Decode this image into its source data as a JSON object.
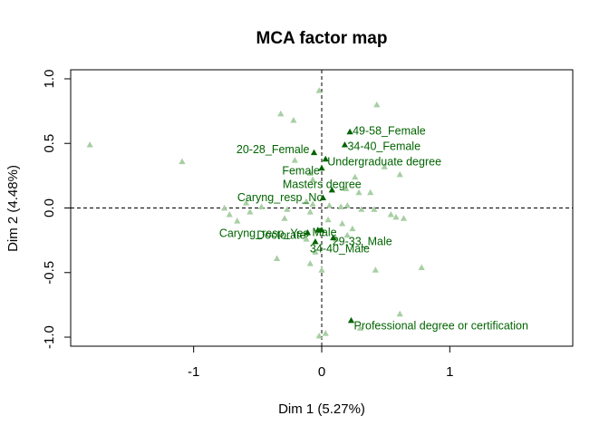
{
  "chart_data": {
    "type": "scatter",
    "title": "MCA factor map",
    "xlabel": "Dim 1 (5.27%)",
    "ylabel": "Dim 2 (4.48%)",
    "xlim": [
      -1.96,
      1.96
    ],
    "ylim": [
      -1.07,
      1.07
    ],
    "x_ticks": [
      -1,
      0,
      1
    ],
    "x_tick_labels": [
      "-1",
      "0",
      "1"
    ],
    "y_ticks": [
      -1.0,
      -0.5,
      0.0,
      0.5,
      1.0
    ],
    "y_tick_labels": [
      "-1.0",
      "-0.5",
      "0.0",
      "0.5",
      "1.0"
    ],
    "grid": false,
    "reference_lines": [
      0,
      0
    ],
    "colors": {
      "highlighted": "#006400",
      "background_points": "#a8cfa4"
    },
    "labeled_points": [
      {
        "label": "49-58_Female",
        "x": 0.22,
        "y": 0.59
      },
      {
        "label": "34-40_Female",
        "x": 0.18,
        "y": 0.49
      },
      {
        "label": "20-28_Female",
        "x": -0.06,
        "y": 0.43
      },
      {
        "label": "Undergraduate degree",
        "x": 0.03,
        "y": 0.38
      },
      {
        "label": "Female",
        "x": 0.0,
        "y": 0.31
      },
      {
        "label": "Masters degree",
        "x": 0.08,
        "y": 0.14
      },
      {
        "label": "Caryng_resp_No",
        "x": 0.01,
        "y": 0.08
      },
      {
        "label": "Caryng_resp_Yes",
        "x": -0.03,
        "y": -0.17
      },
      {
        "label": "Male",
        "x": 0.0,
        "y": -0.17
      },
      {
        "label": "Doctorate",
        "x": -0.11,
        "y": -0.19
      },
      {
        "label": "29-33_Male",
        "x": 0.09,
        "y": -0.23
      },
      {
        "label": "34-40_Male",
        "x": -0.05,
        "y": -0.26
      },
      {
        "label": "Professional degree or certification",
        "x": 0.23,
        "y": -0.87
      }
    ],
    "unlabeled_points": [
      {
        "x": -0.02,
        "y": 0.91
      },
      {
        "x": 0.43,
        "y": 0.8
      },
      {
        "x": -0.32,
        "y": 0.73
      },
      {
        "x": -0.22,
        "y": 0.68
      },
      {
        "x": -1.81,
        "y": 0.49
      },
      {
        "x": -1.09,
        "y": 0.36
      },
      {
        "x": -0.21,
        "y": 0.37
      },
      {
        "x": 0.49,
        "y": 0.32
      },
      {
        "x": 0.61,
        "y": 0.26
      },
      {
        "x": 0.26,
        "y": 0.24
      },
      {
        "x": -0.07,
        "y": 0.22
      },
      {
        "x": -0.09,
        "y": 0.27
      },
      {
        "x": 0.19,
        "y": 0.15
      },
      {
        "x": 0.29,
        "y": 0.12
      },
      {
        "x": 0.38,
        "y": 0.12
      },
      {
        "x": -0.07,
        "y": 0.03
      },
      {
        "x": -0.12,
        "y": 0.05
      },
      {
        "x": -0.47,
        "y": 0.01
      },
      {
        "x": -0.59,
        "y": 0.04
      },
      {
        "x": -0.76,
        "y": 0.0
      },
      {
        "x": -0.56,
        "y": -0.03
      },
      {
        "x": -0.27,
        "y": -0.01
      },
      {
        "x": 0.06,
        "y": 0.02
      },
      {
        "x": 0.15,
        "y": 0.01
      },
      {
        "x": 0.2,
        "y": 0.02
      },
      {
        "x": 0.31,
        "y": -0.01
      },
      {
        "x": 0.41,
        "y": -0.01
      },
      {
        "x": 0.54,
        "y": -0.05
      },
      {
        "x": 0.58,
        "y": -0.07
      },
      {
        "x": 0.64,
        "y": -0.08
      },
      {
        "x": -0.72,
        "y": -0.05
      },
      {
        "x": -0.66,
        "y": -0.1
      },
      {
        "x": -0.29,
        "y": -0.08
      },
      {
        "x": -0.09,
        "y": -0.03
      },
      {
        "x": 0.05,
        "y": -0.09
      },
      {
        "x": 0.16,
        "y": -0.12
      },
      {
        "x": 0.24,
        "y": -0.16
      },
      {
        "x": -0.12,
        "y": -0.24
      },
      {
        "x": 0.2,
        "y": -0.21
      },
      {
        "x": 0.11,
        "y": -0.24
      },
      {
        "x": -0.05,
        "y": -0.34
      },
      {
        "x": -0.35,
        "y": -0.39
      },
      {
        "x": -0.09,
        "y": -0.43
      },
      {
        "x": 0.0,
        "y": -0.48
      },
      {
        "x": 0.42,
        "y": -0.48
      },
      {
        "x": 0.78,
        "y": -0.46
      },
      {
        "x": 0.61,
        "y": -0.82
      },
      {
        "x": 0.03,
        "y": -0.97
      },
      {
        "x": -0.02,
        "y": -0.99
      },
      {
        "x": 0.3,
        "y": -0.93
      }
    ]
  }
}
